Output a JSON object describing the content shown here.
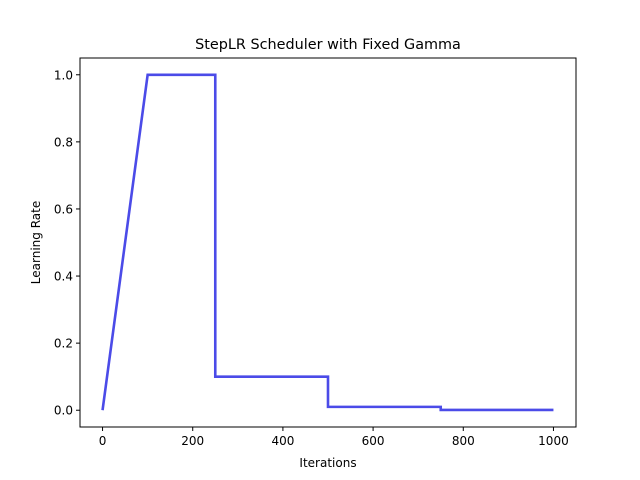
{
  "chart_data": {
    "type": "line",
    "title": "StepLR Scheduler with Fixed Gamma",
    "xlabel": "Iterations",
    "ylabel": "Learning Rate",
    "xlim": [
      -50,
      1050
    ],
    "ylim": [
      -0.05,
      1.05
    ],
    "xticks": [
      0,
      200,
      400,
      600,
      800,
      1000
    ],
    "xtick_labels": [
      "0",
      "200",
      "400",
      "600",
      "800",
      "1000"
    ],
    "yticks": [
      0.0,
      0.2,
      0.4,
      0.6,
      0.8,
      1.0
    ],
    "ytick_labels": [
      "0.0",
      "0.2",
      "0.4",
      "0.6",
      "0.8",
      "1.0"
    ],
    "grid": false,
    "series": [
      {
        "color": "#4b4be8",
        "x": [
          0,
          100,
          250,
          250,
          500,
          500,
          750,
          750,
          1000
        ],
        "y": [
          0.0,
          1.0,
          1.0,
          0.1,
          0.1,
          0.01,
          0.01,
          0.001,
          0.001
        ]
      }
    ]
  }
}
